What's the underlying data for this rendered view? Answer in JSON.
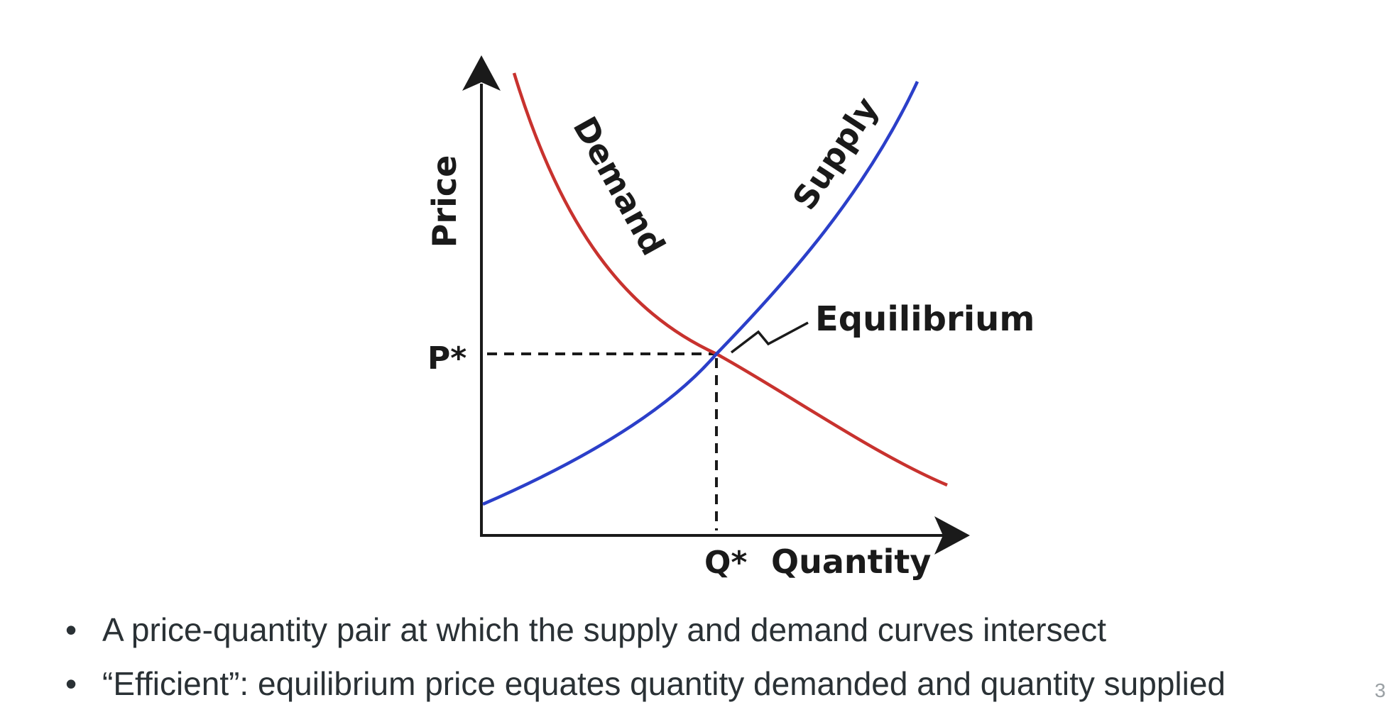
{
  "diagram": {
    "axis_y_label": "Price",
    "axis_x_label": "Quantity",
    "price_marker": "P*",
    "quantity_marker": "Q*",
    "demand_label": "Demand",
    "supply_label": "Supply",
    "equilibrium_label": "Equilibrium",
    "colors": {
      "demand": "#c8322e",
      "supply": "#2b3fc9",
      "axes": "#1a1a1a"
    }
  },
  "bullets": [
    "A price-quantity pair at which the supply and demand curves intersect",
    "“Efficient”: equilibrium price equates quantity demanded and quantity supplied"
  ],
  "page_number": "3"
}
